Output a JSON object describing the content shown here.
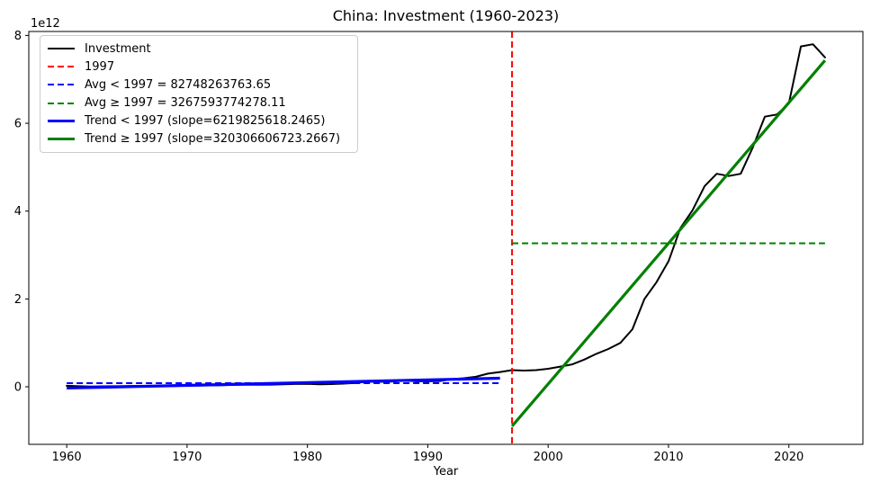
{
  "figure": {
    "background": "#ffffff"
  },
  "chart_data": {
    "type": "line",
    "title": "China: Investment (1960-2023)",
    "xlabel": "Year",
    "ylabel": "",
    "y_offset_text": "1e12",
    "grid": false,
    "legend_position": "upper left",
    "xlim": [
      1956.85,
      2026.15
    ],
    "ylim_e12": [
      -1.31,
      8.09
    ],
    "x_ticks": [
      1960,
      1970,
      1980,
      1990,
      2000,
      2010,
      2020
    ],
    "y_ticks_e12": [
      0,
      2,
      4,
      6,
      8
    ],
    "series": [
      {
        "name": "Investment",
        "color": "#000000",
        "style": "solid",
        "line_width": 2,
        "start_year": 1960,
        "values_e12": [
          0.023,
          0.012,
          0.007,
          0.01,
          0.013,
          0.018,
          0.021,
          0.017,
          0.017,
          0.02,
          0.027,
          0.03,
          0.031,
          0.038,
          0.043,
          0.049,
          0.045,
          0.049,
          0.057,
          0.064,
          0.066,
          0.056,
          0.063,
          0.073,
          0.088,
          0.117,
          0.113,
          0.117,
          0.144,
          0.125,
          0.125,
          0.132,
          0.173,
          0.195,
          0.229,
          0.3,
          0.336,
          0.38,
          0.37,
          0.38,
          0.41,
          0.46,
          0.51,
          0.62,
          0.75,
          0.86,
          1.0,
          1.31,
          2.0,
          2.38,
          2.86,
          3.62,
          4.02,
          4.57,
          4.85,
          4.8,
          4.85,
          5.45,
          6.15,
          6.2,
          6.45,
          7.75,
          7.8,
          7.5
        ]
      }
    ],
    "vline": {
      "label": "1997",
      "x": 1997,
      "color": "#ff0000",
      "style": "dashed",
      "line_width": 2
    },
    "avg_pre": {
      "label": "Avg < 1997",
      "value": 82748263763.65,
      "value_e12": 0.0827,
      "x_range": [
        1960,
        1996
      ],
      "color": "#0000ff",
      "style": "dashed",
      "line_width": 2
    },
    "avg_post": {
      "label": "Avg ≥ 1997",
      "value": 3267593774278.11,
      "value_e12": 3.2676,
      "x_range": [
        1997,
        2023
      ],
      "color": "#008000",
      "style": "dashed",
      "line_width": 2
    },
    "trend_pre": {
      "label": "Trend < 1997",
      "slope": 6219825618.2465,
      "x_range": [
        1960,
        1996
      ],
      "y_start_e12": -0.0292,
      "y_end_e12": 0.1947,
      "color": "#0000ff",
      "style": "solid",
      "line_width": 3.2
    },
    "trend_post": {
      "label": "Trend ≥ 1997",
      "slope": 320306606723.2667,
      "x_range": [
        1997,
        2023
      ],
      "y_start_e12": -0.8964,
      "y_end_e12": 7.4316,
      "color": "#008000",
      "style": "solid",
      "line_width": 3.2
    }
  },
  "legend": {
    "items": [
      {
        "label": "Investment",
        "color": "#000000",
        "style": "solid",
        "thickness": 2
      },
      {
        "label": "1997",
        "color": "#ff0000",
        "style": "dashed",
        "thickness": 2
      },
      {
        "label": "Avg < 1997 = 82748263763.65",
        "color": "#0000ff",
        "style": "dashed",
        "thickness": 2
      },
      {
        "label": "Avg ≥ 1997 = 3267593774278.11",
        "color": "#008000",
        "style": "dashed",
        "thickness": 2
      },
      {
        "label": "Trend < 1997 (slope=6219825618.2465)",
        "color": "#0000ff",
        "style": "solid",
        "thickness": 3
      },
      {
        "label": "Trend ≥ 1997 (slope=320306606723.2667)",
        "color": "#008000",
        "style": "solid",
        "thickness": 3
      }
    ]
  },
  "colors": {
    "black": "#000000",
    "red": "#ff0000",
    "blue": "#0000ff",
    "green": "#008000",
    "legend_border": "#cccccc"
  }
}
